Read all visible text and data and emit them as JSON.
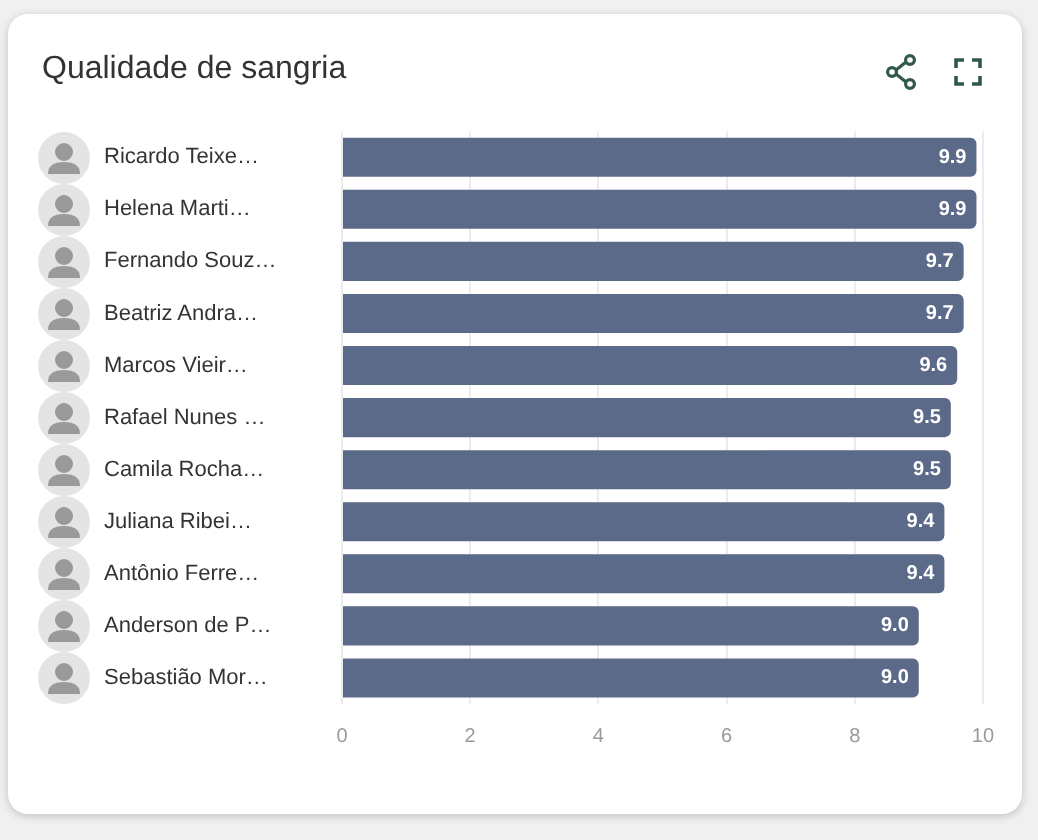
{
  "chart_data": {
    "type": "bar",
    "orientation": "horizontal",
    "title": "Qualidade de sangria",
    "categories": [
      "Ricardo Teixe…",
      "Helena Marti…",
      "Fernando Souz…",
      "Beatriz Andra…",
      "Marcos Vieir…",
      "Rafael Nunes …",
      "Camila Rocha…",
      "Juliana Ribei…",
      "Antônio Ferre…",
      "Anderson de P…",
      "Sebastião Mor…"
    ],
    "values": [
      9.9,
      9.9,
      9.7,
      9.7,
      9.6,
      9.5,
      9.5,
      9.4,
      9.4,
      9.0,
      9.0
    ],
    "color": "#5b6a89",
    "xlim": [
      0,
      10
    ],
    "xticks": [
      0,
      2,
      4,
      6,
      8,
      10
    ],
    "value_labels": [
      "9.9",
      "9.9",
      "9.7",
      "9.7",
      "9.6",
      "9.5",
      "9.5",
      "9.4",
      "9.4",
      "9.0",
      "9.0"
    ],
    "grid": "x",
    "legend": false
  }
}
